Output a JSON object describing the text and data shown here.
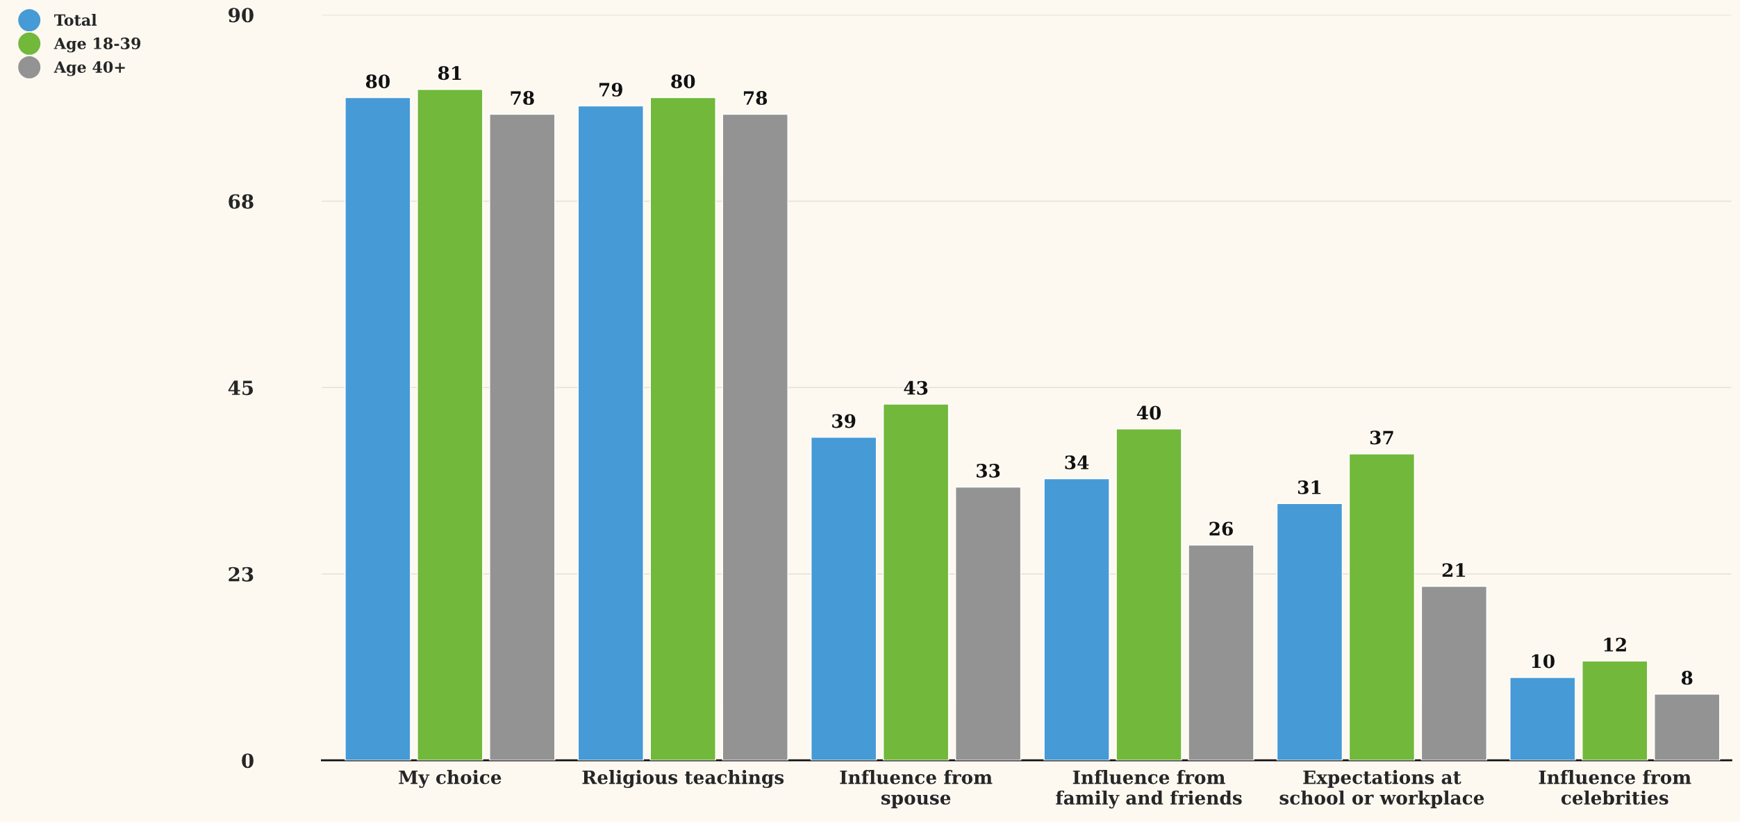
{
  "chart_data": {
    "type": "bar",
    "categories": [
      "My choice",
      "Religious teachings",
      "Influence from\nspouse",
      "Influence from\nfamily and friends",
      "Expectations at\nschool or workplace",
      "Influence from\ncelebrities"
    ],
    "series": [
      {
        "name": "Total",
        "color": "#469ad6",
        "values": [
          80,
          79,
          39,
          34,
          31,
          10
        ]
      },
      {
        "name": "Age 18-39",
        "color": "#72b83b",
        "values": [
          81,
          80,
          43,
          40,
          37,
          12
        ]
      },
      {
        "name": "Age 40+",
        "color": "#939393",
        "values": [
          78,
          78,
          33,
          26,
          21,
          8
        ]
      }
    ],
    "ylim": [
      0,
      90
    ],
    "yticks": [
      0,
      {
        "value": 22.5,
        "label": "23"
      },
      45,
      {
        "value": 67.5,
        "label": "68"
      },
      90
    ],
    "grid": "y",
    "legend": "top left",
    "marker": "circle",
    "data_labels": true
  }
}
